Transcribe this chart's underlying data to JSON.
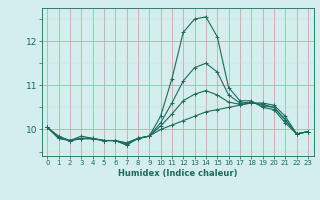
{
  "xlabel": "Humidex (Indice chaleur)",
  "ylabel": "",
  "background_color": "#d4eeed",
  "line_color": "#1a6b5a",
  "grid_color_major": "#c8a8a8",
  "grid_color_minor": "#ddd0d0",
  "xlim": [
    -0.5,
    23.5
  ],
  "ylim": [
    9.4,
    12.75
  ],
  "x_ticks": [
    0,
    1,
    2,
    3,
    4,
    5,
    6,
    7,
    8,
    9,
    10,
    11,
    12,
    13,
    14,
    15,
    16,
    17,
    18,
    19,
    20,
    21,
    22,
    23
  ],
  "y_ticks": [
    10,
    11,
    12
  ],
  "series": [
    [
      10.05,
      9.8,
      9.75,
      9.85,
      9.8,
      9.75,
      9.75,
      9.65,
      9.8,
      9.85,
      10.3,
      11.15,
      12.2,
      12.5,
      12.55,
      12.1,
      10.95,
      10.65,
      10.65,
      10.5,
      10.45,
      10.15,
      9.9,
      9.95
    ],
    [
      10.05,
      9.85,
      9.75,
      9.8,
      9.8,
      9.75,
      9.75,
      9.7,
      9.8,
      9.85,
      10.0,
      10.1,
      10.2,
      10.3,
      10.4,
      10.45,
      10.5,
      10.55,
      10.6,
      10.6,
      10.55,
      10.3,
      9.9,
      9.95
    ],
    [
      10.05,
      9.82,
      9.75,
      9.79,
      9.79,
      9.75,
      9.75,
      9.68,
      9.79,
      9.85,
      10.08,
      10.35,
      10.65,
      10.8,
      10.88,
      10.78,
      10.62,
      10.57,
      10.6,
      10.57,
      10.5,
      10.22,
      9.9,
      9.95
    ],
    [
      10.05,
      9.8,
      9.75,
      9.8,
      9.79,
      9.75,
      9.75,
      9.65,
      9.8,
      9.85,
      10.15,
      10.6,
      11.1,
      11.4,
      11.5,
      11.3,
      10.78,
      10.6,
      10.62,
      10.54,
      10.5,
      10.22,
      9.9,
      9.95
    ]
  ]
}
